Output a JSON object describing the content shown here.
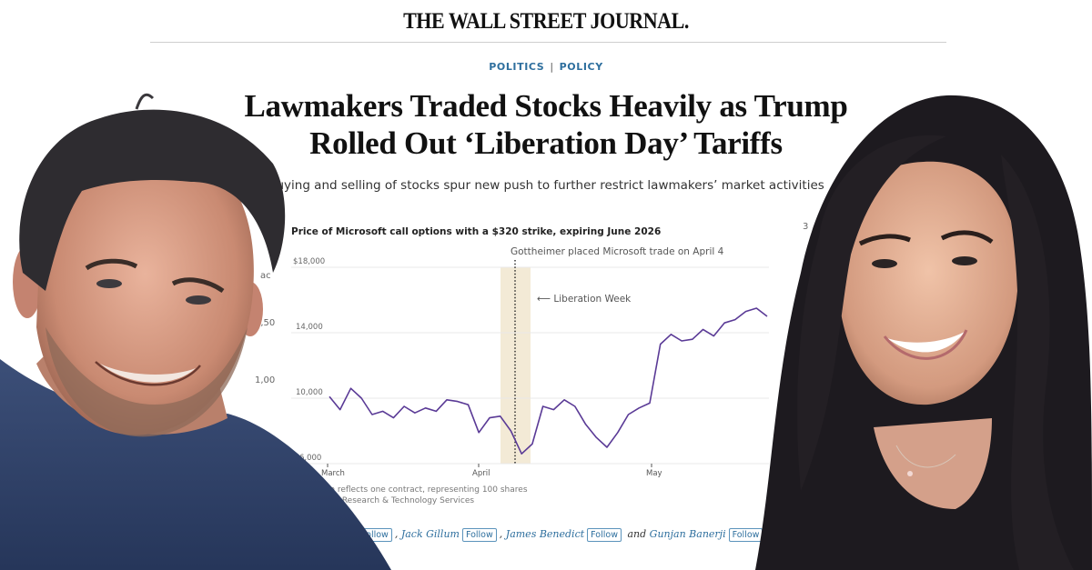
{
  "masthead": "THE WALL STREET JOURNAL.",
  "sections": {
    "primary": "POLITICS",
    "secondary": "POLICY",
    "separator": "|"
  },
  "headline": {
    "line1": "Lawmakers Traded Stocks Heavily as Trump",
    "line2": "Rolled Out ‘Liberation Day’ Tariffs"
  },
  "dek": "Buying and selling of stocks spur new push to further restrict lawmakers’ market activities",
  "chart": {
    "annotation_trade": "Gottheimer placed Microsoft trade on April 4",
    "annotation_week": "⟵ Liberation Week",
    "note": "Price reflects one contract, representing 100 shares",
    "source": "ption Research & Technology Services"
  },
  "background_chart_fragment": {
    "labels": [
      "ac",
      "1,50",
      "1,00",
      "50"
    ],
    "right_edge_char": "3"
  },
  "byline": {
    "authors": [
      {
        "name": "",
        "follow": "Follow"
      },
      {
        "name": "Jack Gillum",
        "follow": "Follow"
      },
      {
        "name": "James Benedict",
        "follow": "Follow"
      },
      {
        "name": "Gunjan Banerji",
        "follow": "Follow"
      }
    ],
    "separator": ",",
    "and": "and"
  },
  "photos": {
    "left": "Smiling man with dark graying hair and stubble, navy t-shirt",
    "right": "Smiling woman with long dark hair, pendant necklace"
  },
  "colors": {
    "line": "#5a3a96",
    "band": "#f3ead6",
    "section": "#2e6f9e",
    "grid": "#e6e6e6"
  },
  "chart_data": {
    "type": "line",
    "title": "Price of Microsoft call options with a $320 strike, expiring June 2026",
    "xlabel": "",
    "ylabel": "",
    "y_tick_labels": [
      "$18,000",
      "14,000",
      "10,000",
      "6,000"
    ],
    "y_ticks": [
      18000,
      14000,
      10000,
      6000
    ],
    "ylim": [
      6000,
      18000
    ],
    "x_tick_labels": [
      "March",
      "April",
      "May"
    ],
    "grid": true,
    "legend": null,
    "highlight_band": {
      "label": "Liberation Week",
      "start": "Apr 2",
      "end": "Apr 9"
    },
    "vertical_marker": {
      "label": "Gottheimer placed Microsoft trade on April 4",
      "date": "Apr 4"
    },
    "series": [
      {
        "name": "MSFT $320 call, June 2026",
        "x": [
          "Mar 1",
          "Mar 3",
          "Mar 5",
          "Mar 7",
          "Mar 9",
          "Mar 11",
          "Mar 13",
          "Mar 15",
          "Mar 17",
          "Mar 19",
          "Mar 21",
          "Mar 23",
          "Mar 25",
          "Mar 27",
          "Mar 29",
          "Mar 31",
          "Apr 2",
          "Apr 4",
          "Apr 6",
          "Apr 8",
          "Apr 10",
          "Apr 12",
          "Apr 14",
          "Apr 16",
          "Apr 18",
          "Apr 20",
          "Apr 22",
          "Apr 24",
          "Apr 26",
          "Apr 28",
          "Apr 30",
          "May 1",
          "May 3",
          "May 5",
          "May 7",
          "May 9",
          "May 11",
          "May 13",
          "May 15",
          "May 17",
          "May 19",
          "May 21"
        ],
        "values": [
          10100,
          9300,
          10600,
          10000,
          9000,
          9200,
          8800,
          9500,
          9100,
          9400,
          9200,
          9900,
          9800,
          9600,
          7900,
          8800,
          8900,
          8000,
          6600,
          7200,
          9500,
          9300,
          9900,
          9500,
          8400,
          7600,
          7000,
          7900,
          9000,
          9400,
          9700,
          13300,
          13900,
          13500,
          13600,
          14200,
          13800,
          14600,
          14800,
          15300,
          15500,
          15000
        ]
      }
    ]
  }
}
